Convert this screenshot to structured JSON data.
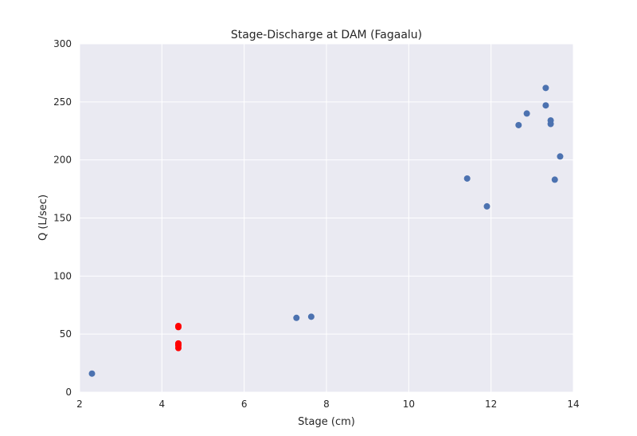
{
  "chart_data": {
    "type": "scatter",
    "title": "Stage-Discharge at DAM (Fagaalu)",
    "xlabel": "Stage (cm)",
    "ylabel": "Q (L/sec)",
    "xlim": [
      2,
      14
    ],
    "ylim": [
      0,
      300
    ],
    "xticks": [
      2,
      4,
      6,
      8,
      10,
      12,
      14
    ],
    "yticks": [
      0,
      50,
      100,
      150,
      200,
      250,
      300
    ],
    "grid": true,
    "background": "#EAEAF2",
    "series": [
      {
        "color": "#4C72B0",
        "points": [
          [
            2.3,
            16
          ],
          [
            7.27,
            64
          ],
          [
            7.63,
            65
          ],
          [
            11.42,
            184
          ],
          [
            11.9,
            160
          ],
          [
            12.67,
            230
          ],
          [
            12.87,
            240
          ],
          [
            13.33,
            262
          ],
          [
            13.33,
            247
          ],
          [
            13.45,
            234
          ],
          [
            13.45,
            231
          ],
          [
            13.55,
            183
          ],
          [
            13.68,
            203
          ]
        ]
      },
      {
        "color": "#FF0000",
        "points": [
          [
            4.4,
            56
          ],
          [
            4.4,
            57
          ],
          [
            4.4,
            38
          ],
          [
            4.4,
            40
          ],
          [
            4.4,
            41
          ],
          [
            4.4,
            42
          ]
        ]
      }
    ]
  }
}
